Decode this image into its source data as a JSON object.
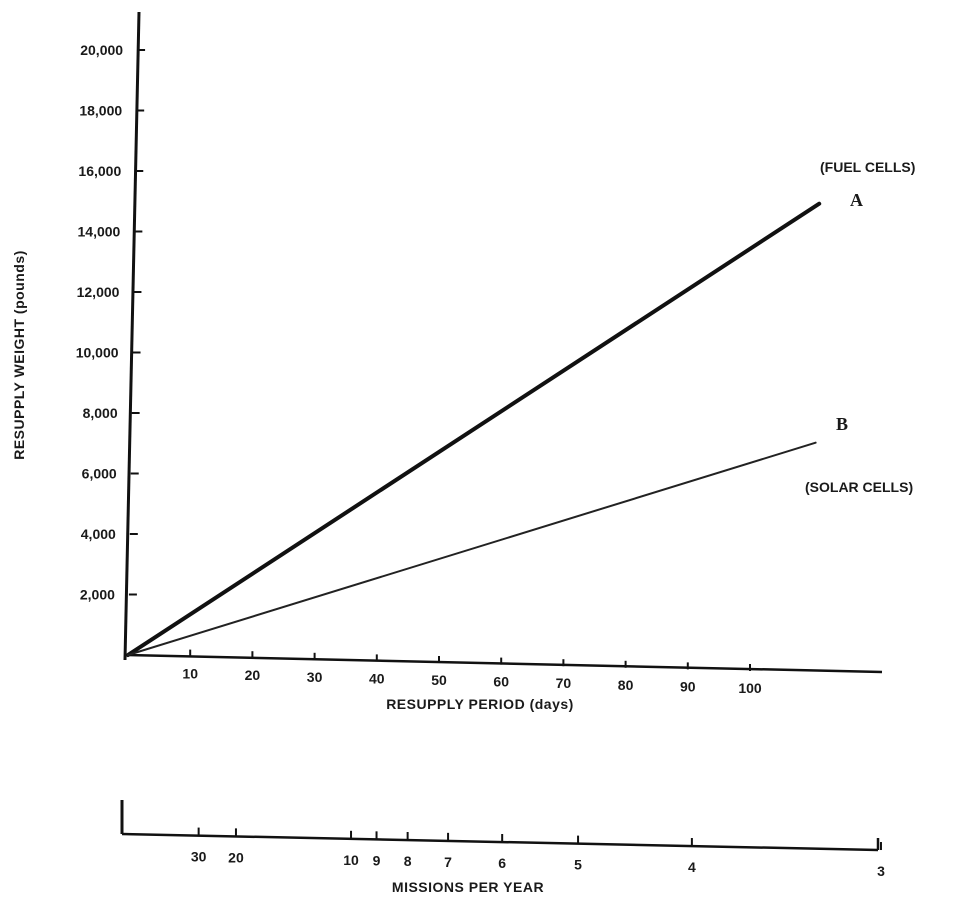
{
  "chart_data": {
    "type": "line",
    "ylabel": "RESUPPLY WEIGHT (pounds)",
    "xlabel": "RESUPPLY PERIOD (days)",
    "x2label": "MISSIONS PER YEAR",
    "ylim": [
      0,
      21000
    ],
    "xlim": [
      0,
      115
    ],
    "yticks": [
      2000,
      4000,
      6000,
      8000,
      10000,
      12000,
      14000,
      16000,
      18000,
      20000
    ],
    "ytick_labels": [
      "2,000",
      "4,000",
      "6,000",
      "8,000",
      "10,000",
      "12,000",
      "14,000",
      "16,000",
      "18,000",
      "20,000"
    ],
    "xticks": [
      10,
      20,
      30,
      40,
      50,
      60,
      70,
      80,
      90,
      100
    ],
    "xtick_labels": [
      "10",
      "20",
      "30",
      "40",
      "50",
      "60",
      "70",
      "80",
      "90",
      "100"
    ],
    "x2ticks": [
      {
        "label": "30",
        "days": 12
      },
      {
        "label": "20",
        "days": 18
      },
      {
        "label": "10",
        "days": 36.5
      },
      {
        "label": "9",
        "days": 40.6
      },
      {
        "label": "8",
        "days": 45.6
      },
      {
        "label": "7",
        "days": 52.1
      },
      {
        "label": "6",
        "days": 60.8
      },
      {
        "label": "5",
        "days": 73
      },
      {
        "label": "4",
        "days": 91.3
      },
      {
        "label": "3",
        "days": 121.7
      }
    ],
    "grid": false,
    "series": [
      {
        "name": "A",
        "note": "(FUEL CELLS)",
        "x": [
          0,
          110
        ],
        "y": [
          0,
          15500
        ],
        "stroke": "#111111"
      },
      {
        "name": "B",
        "note": "(SOLAR CELLS)",
        "x": [
          0,
          110
        ],
        "y": [
          0,
          7600
        ],
        "stroke": "#222222"
      }
    ]
  }
}
